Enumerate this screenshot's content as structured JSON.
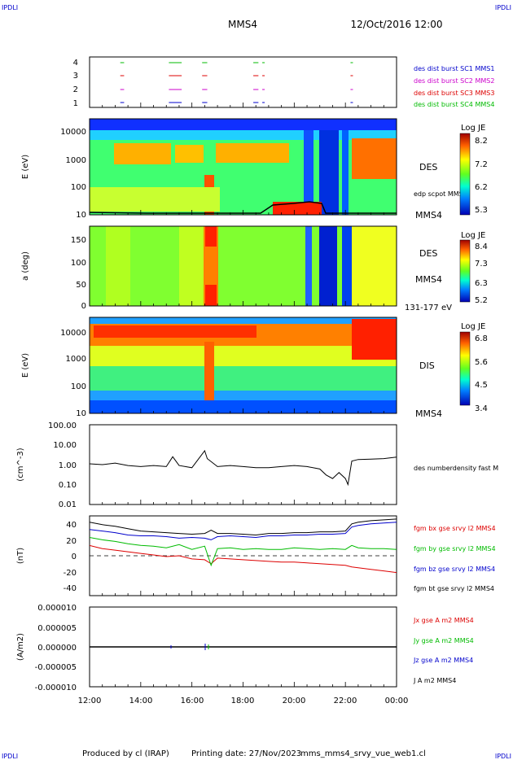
{
  "header": {
    "corner_tl": "IPDLI",
    "corner_tr": "IPDLI",
    "corner_bl": "IPDLI",
    "corner_br": "IPDLI",
    "title": "MMS4",
    "datetime": "12/Oct/2016 12:00"
  },
  "footer": {
    "produced": "Produced by cl (IRAP)",
    "printing": "Printing date: 27/Nov/2023",
    "script": "mms_mms4_srvy_vue_web1.cl"
  },
  "x_axis": {
    "ticks": [
      "12:00",
      "14:00",
      "16:00",
      "18:00",
      "20:00",
      "22:00",
      "00:00"
    ]
  },
  "colors": {
    "mms1": "#0000cc",
    "mms2": "#cc00cc",
    "mms3": "#dd0000",
    "mms4": "#00bb00",
    "black": "#000000"
  },
  "chart_data": [
    {
      "type": "scatter",
      "panel": "burst",
      "ytick_labels": [
        "4",
        "3",
        "2",
        "1"
      ],
      "legend": [
        "des dist burst SC1 MMS1",
        "des dist burst SC2 MMS2",
        "des dist burst SC3 MMS3",
        "des dist burst SC4 MMS4"
      ],
      "intervals_hours": [
        [
          13.2,
          13.35
        ],
        [
          15.1,
          15.6
        ],
        [
          16.4,
          16.6
        ],
        [
          18.4,
          18.6
        ],
        [
          18.75,
          18.8
        ],
        [
          22.2,
          22.25
        ]
      ]
    },
    {
      "type": "heatmap",
      "panel": "des_energy",
      "ylabel": "E (eV)",
      "yticks": [
        "10000",
        "1000",
        "100",
        "10"
      ],
      "right_label": "DES",
      "right_label2": "MMS4",
      "overlay_label": "edp scpot MMS4",
      "colorbar": {
        "label": "Log JE",
        "ticks": [
          "8.2",
          "7.2",
          "6.2",
          "5.3"
        ]
      }
    },
    {
      "type": "heatmap",
      "panel": "des_pitch",
      "ylabel": "a (deg)",
      "yticks": [
        "150",
        "100",
        "50",
        "0"
      ],
      "right_label": "DES",
      "right_label2": "MMS4",
      "energy_range": "131-177 eV",
      "colorbar": {
        "label": "Log JE",
        "ticks": [
          "8.4",
          "7.3",
          "6.3",
          "5.2"
        ]
      }
    },
    {
      "type": "heatmap",
      "panel": "dis_energy",
      "ylabel": "E (eV)",
      "yticks": [
        "10000",
        "1000",
        "100",
        "10"
      ],
      "right_label": "DIS",
      "right_label2": "MMS4",
      "colorbar": {
        "label": "Log JE",
        "ticks": [
          "6.8",
          "5.6",
          "4.5",
          "3.4"
        ]
      }
    },
    {
      "type": "line",
      "panel": "density",
      "ylabel": "(cm^-3)",
      "yticks": [
        "100.00",
        "10.00",
        "1.00",
        "0.10",
        "0.01"
      ],
      "series_label": "des numberdensity fast M",
      "x_hours": [
        12,
        12.5,
        13,
        13.5,
        14,
        14.5,
        15,
        15.25,
        15.5,
        16,
        16.5,
        16.6,
        17,
        17.5,
        18,
        18.5,
        19,
        19.5,
        20,
        20.5,
        21,
        21.25,
        21.5,
        21.75,
        22,
        22.1,
        22.25,
        22.5,
        23,
        23.5,
        24
      ],
      "y_cm3": [
        1.1,
        1.0,
        1.2,
        0.9,
        0.8,
        0.9,
        0.8,
        2.5,
        0.9,
        0.7,
        5.0,
        2.0,
        0.8,
        0.9,
        0.8,
        0.7,
        0.7,
        0.8,
        0.9,
        0.8,
        0.6,
        0.3,
        0.2,
        0.4,
        0.2,
        0.1,
        1.5,
        1.8,
        1.9,
        2.0,
        2.4
      ]
    },
    {
      "type": "line",
      "panel": "fgm",
      "ylabel": "(nT)",
      "yticks": [
        "40",
        "20",
        "0",
        "-20",
        "-40"
      ],
      "ylim": [
        -48,
        52
      ],
      "x_hours": [
        12,
        12.5,
        13,
        13.5,
        14,
        14.5,
        15,
        15.5,
        16,
        16.5,
        16.75,
        17,
        17.5,
        18,
        18.5,
        19,
        19.5,
        20,
        20.5,
        21,
        21.5,
        22,
        22.25,
        22.5,
        23,
        23.5,
        24
      ],
      "series": [
        {
          "name": "fgm bx gse srvy l2 MMS4",
          "color": "#dd0000",
          "values": [
            15,
            11,
            9,
            7,
            5,
            3,
            1,
            2,
            -2,
            -3,
            -8,
            -1,
            -2,
            -3,
            -4,
            -5,
            -6,
            -6,
            -7,
            -8,
            -9,
            -10,
            -12,
            -13,
            -15,
            -17,
            -19
          ]
        },
        {
          "name": "fgm by gse srvy l2 MMS4",
          "color": "#00bb00",
          "values": [
            25,
            22,
            20,
            17,
            15,
            14,
            12,
            16,
            10,
            14,
            -10,
            11,
            12,
            10,
            11,
            10,
            10,
            12,
            11,
            10,
            11,
            10,
            15,
            12,
            11,
            11,
            10
          ]
        },
        {
          "name": "fgm bz gse srvy l2 MMS4",
          "color": "#0000cc",
          "values": [
            35,
            33,
            31,
            28,
            27,
            27,
            26,
            24,
            25,
            24,
            22,
            26,
            27,
            26,
            25,
            27,
            27,
            28,
            28,
            29,
            29,
            30,
            38,
            40,
            42,
            43,
            44
          ]
        },
        {
          "name": "fgm bt gse srvy l2 MMS4",
          "color": "#000000",
          "values": [
            44,
            41,
            39,
            36,
            33,
            32,
            31,
            30,
            29,
            30,
            34,
            30,
            30,
            29,
            28,
            30,
            30,
            31,
            31,
            32,
            32,
            33,
            42,
            44,
            46,
            47,
            48
          ]
        }
      ]
    },
    {
      "type": "line",
      "panel": "current",
      "ylabel": "(A/m2)",
      "yticks": [
        "0.000010",
        "0.000005",
        "0.000000",
        "-0.000005",
        "-0.000010"
      ],
      "ylim": [
        -1e-05,
        1e-05
      ],
      "x_hours": [
        12,
        24
      ],
      "series": [
        {
          "name": "Jx gse A m2 MMS4",
          "color": "#dd0000",
          "values": [
            0,
            0
          ]
        },
        {
          "name": "Jy gse A m2 MMS4",
          "color": "#00bb00",
          "values": [
            0,
            0
          ]
        },
        {
          "name": "Jz gse A m2 MMS4",
          "color": "#0000cc",
          "values": [
            0,
            0
          ]
        },
        {
          "name": "J A m2 MMS4",
          "color": "#000000",
          "values": [
            0,
            0
          ]
        }
      ]
    }
  ]
}
